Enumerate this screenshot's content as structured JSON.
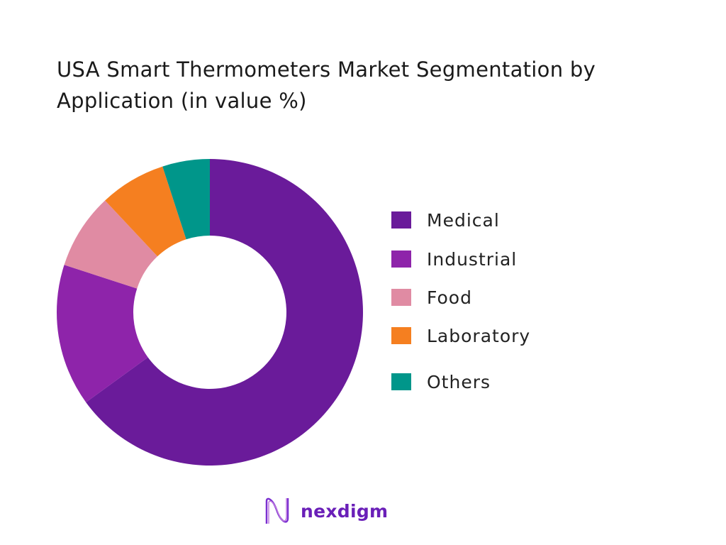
{
  "chart_data": {
    "type": "pie",
    "variant": "donut",
    "title": "USA Smart Thermometers Market Segmentation by Application (in value %)",
    "categories": [
      "Medical",
      "Industrial",
      "Food",
      "Laboratory",
      "Others"
    ],
    "values": [
      65,
      15,
      8,
      7,
      5
    ],
    "colors": [
      "#6a1b9a",
      "#8e24aa",
      "#e08ba3",
      "#f57f20",
      "#00968a"
    ],
    "legend_position": "right",
    "start_angle": "top, clockwise"
  },
  "logo": {
    "text": "nexdigm"
  }
}
